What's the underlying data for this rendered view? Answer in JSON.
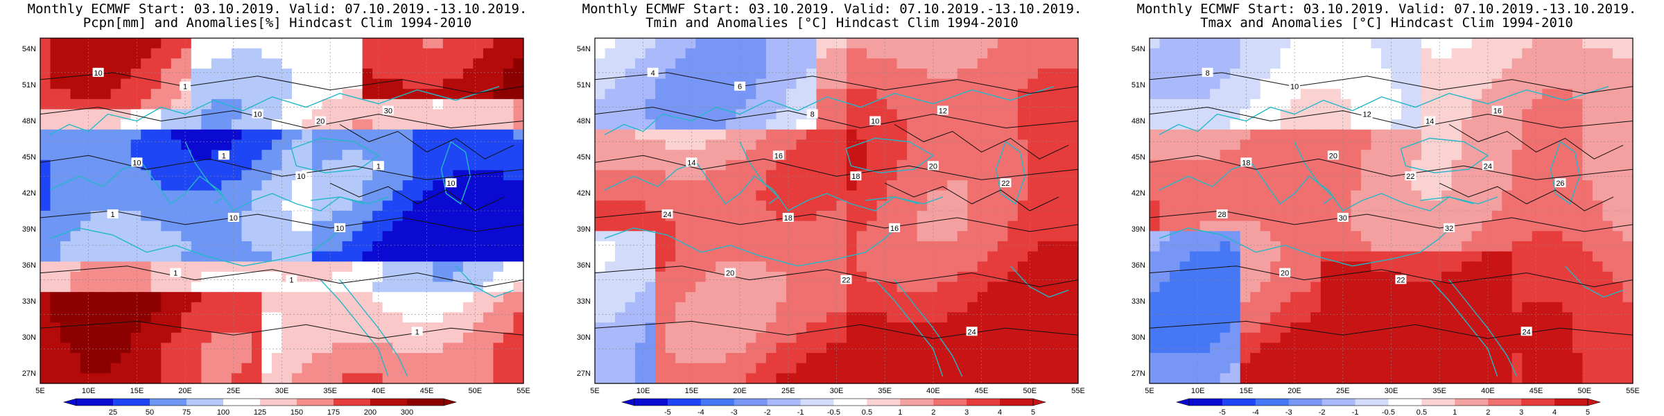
{
  "panels": [
    {
      "title_line1": "Monthly ECMWF Start: 03.10.2019. Valid: 07.10.2019.-13.10.2019.",
      "title_line2": "Pcpn[mm] and Anomalies[%] Hindcast Clim 1994-2010",
      "lat_labels": [
        "54N",
        "51N",
        "48N",
        "45N",
        "42N",
        "39N",
        "36N",
        "33N",
        "30N",
        "27N"
      ],
      "lon_labels": [
        "5E",
        "10E",
        "15E",
        "20E",
        "25E",
        "30E",
        "35E",
        "40E",
        "45E",
        "50E",
        "55E"
      ],
      "colorbar_ticks": [
        "25",
        "50",
        "75",
        "100",
        "125",
        "150",
        "175",
        "200",
        "300"
      ],
      "contour_labels": [
        "10",
        "1",
        "10",
        "20",
        "30",
        "10",
        "1",
        "10",
        "1",
        "10",
        "1",
        "10",
        "10",
        "1",
        "1",
        "1"
      ],
      "colors": [
        "#0a0ad2",
        "#1e46f5",
        "#6e96f5",
        "#b4c8fa",
        "#ffffff",
        "#fac8c8",
        "#f58c8c",
        "#e63c3c",
        "#b40a0a",
        "#8c0000"
      ]
    },
    {
      "title_line1": "Monthly ECMWF Start: 03.10.2019. Valid: 07.10.2019.-13.10.2019.",
      "title_line2": "Tmin and Anomalies [°C] Hindcast Clim 1994-2010",
      "lat_labels": [
        "54N",
        "51N",
        "48N",
        "45N",
        "42N",
        "39N",
        "36N",
        "33N",
        "30N",
        "27N"
      ],
      "lon_labels": [
        "5E",
        "10E",
        "15E",
        "20E",
        "25E",
        "30E",
        "35E",
        "40E",
        "45E",
        "50E",
        "55E"
      ],
      "colorbar_ticks": [
        "-5",
        "-4",
        "-3",
        "-2",
        "-1",
        "-0.5",
        "0.5",
        "1",
        "2",
        "3",
        "4",
        "5"
      ],
      "contour_labels": [
        "4",
        "6",
        "8",
        "10",
        "12",
        "14",
        "16",
        "18",
        "20",
        "22",
        "24",
        "18",
        "16",
        "20",
        "22",
        "24"
      ],
      "colors": [
        "#0a0ad2",
        "#1e46f5",
        "#4678f5",
        "#7896f5",
        "#aab9fa",
        "#d2dcfa",
        "#ffffff",
        "#fad2d2",
        "#f5a0a0",
        "#f07070",
        "#e63c3c",
        "#c81414"
      ]
    },
    {
      "title_line1": "Monthly ECMWF Start: 03.10.2019. Valid: 07.10.2019.-13.10.2019.",
      "title_line2": "Tmax and Anomalies [°C] Hindcast Clim 1994-2010",
      "lat_labels": [
        "54N",
        "51N",
        "48N",
        "45N",
        "42N",
        "39N",
        "36N",
        "33N",
        "30N",
        "27N"
      ],
      "lon_labels": [
        "5E",
        "10E",
        "15E",
        "20E",
        "25E",
        "30E",
        "35E",
        "40E",
        "45E",
        "50E",
        "55E"
      ],
      "colorbar_ticks": [
        "-5",
        "-4",
        "-3",
        "-2",
        "-1",
        "-0.5",
        "0.5",
        "1",
        "2",
        "3",
        "4",
        "5"
      ],
      "contour_labels": [
        "8",
        "10",
        "12",
        "14",
        "16",
        "18",
        "20",
        "22",
        "24",
        "26",
        "28",
        "30",
        "32",
        "20",
        "22",
        "24"
      ],
      "colors": [
        "#0a0ad2",
        "#1e46f5",
        "#4678f5",
        "#7896f5",
        "#aab9fa",
        "#d2dcfa",
        "#ffffff",
        "#fad2d2",
        "#f5a0a0",
        "#f07070",
        "#e63c3c",
        "#c81414"
      ]
    }
  ]
}
